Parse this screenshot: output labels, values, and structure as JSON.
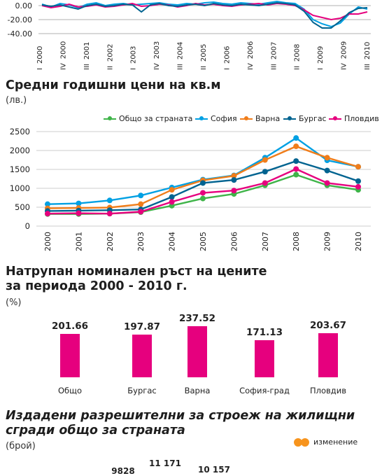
{
  "chart_data": [
    {
      "type": "line",
      "ylim": [
        -40,
        0
      ],
      "yticks": [
        "0.00",
        "-20.00",
        "-40.00"
      ],
      "xticks": [
        {
          "q": "I",
          "y": "2000"
        },
        {
          "q": "IV",
          "y": "2000"
        },
        {
          "q": "III",
          "y": "2001"
        },
        {
          "q": "II",
          "y": "2002"
        },
        {
          "q": "I",
          "y": "2003"
        },
        {
          "q": "IV",
          "y": "2003"
        },
        {
          "q": "III",
          "y": "2004"
        },
        {
          "q": "II",
          "y": "2005"
        },
        {
          "q": "I",
          "y": "2006"
        },
        {
          "q": "IV",
          "y": "2006"
        },
        {
          "q": "III",
          "y": "2007"
        },
        {
          "q": "II",
          "y": "2008"
        },
        {
          "q": "I",
          "y": "2009"
        },
        {
          "q": "IV",
          "y": "2009"
        },
        {
          "q": "III",
          "y": "2010"
        }
      ],
      "series": [
        {
          "color": "#00a0e3",
          "values": [
            2,
            -2,
            3,
            1,
            -3,
            2,
            4,
            0,
            2,
            3,
            1,
            2,
            3,
            4,
            2,
            1,
            3,
            2,
            4,
            5,
            3,
            2,
            4,
            3,
            2,
            4,
            6,
            4,
            3,
            -5,
            -20,
            -26,
            -30,
            -25,
            -12,
            -2,
            -5
          ]
        },
        {
          "color": "#e6007e",
          "values": [
            0,
            -3,
            -1,
            2,
            -2,
            -1,
            1,
            -2,
            -1,
            1,
            3,
            -1,
            0,
            2,
            1,
            -2,
            0,
            3,
            1,
            2,
            0,
            -1,
            1,
            2,
            3,
            1,
            3,
            2,
            0,
            -6,
            -14,
            -17,
            -20,
            -18,
            -12,
            -12,
            -9
          ]
        },
        {
          "color": "#006390",
          "values": [
            1,
            -1,
            1,
            -2,
            -5,
            0,
            2,
            -1,
            0,
            2,
            1,
            -9,
            1,
            3,
            0,
            -1,
            1,
            2,
            0,
            3,
            1,
            0,
            2,
            1,
            0,
            2,
            4,
            3,
            1,
            -8,
            -24,
            -32,
            -32,
            -22,
            -10,
            -4,
            -3
          ]
        }
      ]
    },
    {
      "type": "line",
      "title": "Средни годишни цени на кв.м",
      "unit": "(лв.)",
      "categories": [
        "2000",
        "2001",
        "2002",
        "2003",
        "2004",
        "2005",
        "2006",
        "2007",
        "2008",
        "2009",
        "2010"
      ],
      "ylim": [
        0,
        2500
      ],
      "yticks": [
        "0",
        "500",
        "1000",
        "1500",
        "2000",
        "2500"
      ],
      "legend_position": "top-right",
      "series": [
        {
          "name": "Общо за страната",
          "color": "#3fb449",
          "values": [
            320,
            320,
            330,
            370,
            540,
            730,
            850,
            1080,
            1360,
            1080,
            960
          ]
        },
        {
          "name": "София",
          "color": "#00a0e3",
          "values": [
            580,
            600,
            680,
            810,
            1020,
            1230,
            1340,
            1810,
            2330,
            1740,
            1570
          ]
        },
        {
          "name": "Варна",
          "color": "#f07d1a",
          "values": [
            470,
            480,
            490,
            580,
            960,
            1210,
            1330,
            1750,
            2110,
            1810,
            1570
          ]
        },
        {
          "name": "Бургас",
          "color": "#006390",
          "values": [
            400,
            410,
            420,
            440,
            770,
            1140,
            1220,
            1440,
            1720,
            1470,
            1190
          ]
        },
        {
          "name": "Пловдив",
          "color": "#e6007e",
          "values": [
            330,
            340,
            330,
            380,
            640,
            880,
            940,
            1140,
            1510,
            1140,
            1040
          ]
        }
      ]
    },
    {
      "type": "bar",
      "title_line1": "Натрупан номинален ръст на цените",
      "title_line2": "за периода 2000 - 2010 г.",
      "unit": "(%)",
      "categories": [
        "Общо",
        "Бургас",
        "Варна",
        "София-град",
        "Пловдив"
      ],
      "values": [
        201.66,
        197.87,
        237.52,
        171.13,
        203.67
      ],
      "labels": [
        "201.66",
        "197.87",
        "237.52",
        "171.13",
        "203.67"
      ],
      "color": "#e6007e"
    },
    {
      "type": "bar",
      "title_line1": "Издадени разрешителни за строеж на жилищни",
      "title_line2": "сгради общо за страната",
      "unit": "(брой)",
      "legend": "изменение",
      "legend_color": "#f7941d",
      "labels": [
        "9828",
        "11 171",
        "10 157"
      ]
    }
  ]
}
